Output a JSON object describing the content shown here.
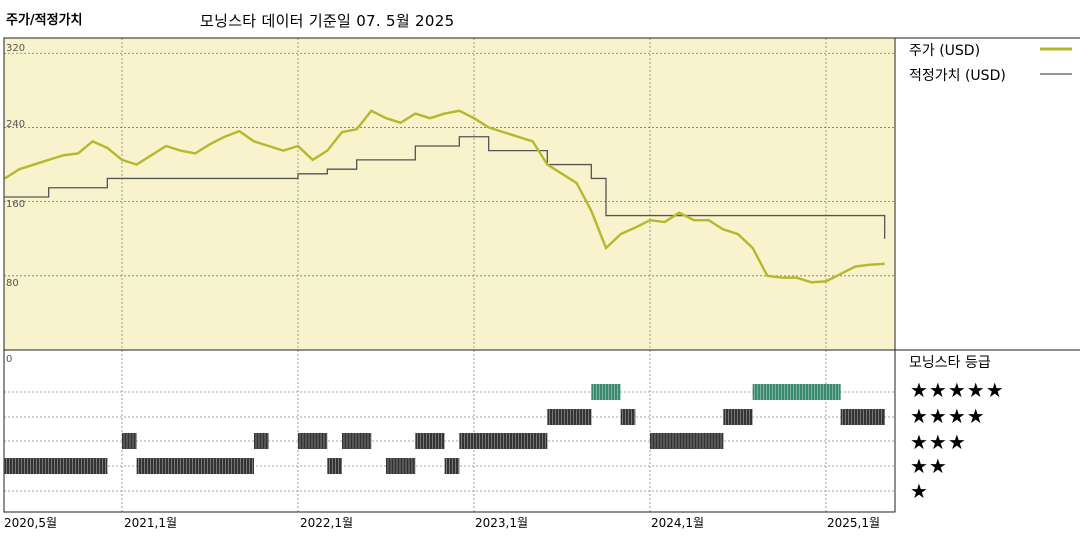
{
  "header": {
    "left_title": "주가/적정가치",
    "center_title": "모닝스타 데이터 기준일 07. 5월 2025"
  },
  "legend": {
    "price_label": "주가 (USD)",
    "fair_label": "적정가치 (USD)",
    "price_color": "#b5b82c",
    "fair_color": "#555555"
  },
  "rating_panel": {
    "title": "모닝스타 등급",
    "levels": [
      "★★★★★",
      "★★★★",
      "★★★",
      "★★",
      "★"
    ],
    "bar_color_dark": "#333333",
    "bar_color_green": "#3a8a6e"
  },
  "chart_data": {
    "type": "line",
    "ylim": [
      0,
      330
    ],
    "yticks": [
      0,
      80,
      160,
      240,
      320
    ],
    "ytick_labels": [
      "0",
      "80",
      "160",
      "240",
      "320"
    ],
    "xticks": [
      "2020-05",
      "2021-01",
      "2022-01",
      "2023-01",
      "2024-01",
      "2025-01"
    ],
    "xtick_labels": [
      "2020,5월",
      "2021,1월",
      "2022,1월",
      "2023,1월",
      "2024,1월",
      "2025,1월"
    ],
    "background_color": "#f8f3cc",
    "series": [
      {
        "name": "주가 (USD)",
        "points": [
          [
            "2020-05",
            185
          ],
          [
            "2020-06",
            195
          ],
          [
            "2020-07",
            200
          ],
          [
            "2020-08",
            205
          ],
          [
            "2020-09",
            210
          ],
          [
            "2020-10",
            212
          ],
          [
            "2020-11",
            225
          ],
          [
            "2020-12",
            218
          ],
          [
            "2021-01",
            205
          ],
          [
            "2021-02",
            200
          ],
          [
            "2021-03",
            210
          ],
          [
            "2021-04",
            220
          ],
          [
            "2021-05",
            215
          ],
          [
            "2021-06",
            212
          ],
          [
            "2021-07",
            222
          ],
          [
            "2021-08",
            230
          ],
          [
            "2021-09",
            236
          ],
          [
            "2021-10",
            225
          ],
          [
            "2021-11",
            220
          ],
          [
            "2021-12",
            215
          ],
          [
            "2022-01",
            220
          ],
          [
            "2022-02",
            205
          ],
          [
            "2022-03",
            215
          ],
          [
            "2022-04",
            235
          ],
          [
            "2022-05",
            238
          ],
          [
            "2022-06",
            258
          ],
          [
            "2022-07",
            250
          ],
          [
            "2022-08",
            245
          ],
          [
            "2022-09",
            255
          ],
          [
            "2022-10",
            250
          ],
          [
            "2022-11",
            255
          ],
          [
            "2022-12",
            258
          ],
          [
            "2023-01",
            250
          ],
          [
            "2023-02",
            240
          ],
          [
            "2023-03",
            235
          ],
          [
            "2023-04",
            230
          ],
          [
            "2023-05",
            225
          ],
          [
            "2023-06",
            200
          ],
          [
            "2023-07",
            190
          ],
          [
            "2023-08",
            180
          ],
          [
            "2023-09",
            150
          ],
          [
            "2023-10",
            110
          ],
          [
            "2023-11",
            125
          ],
          [
            "2023-12",
            132
          ],
          [
            "2024-01",
            140
          ],
          [
            "2024-02",
            138
          ],
          [
            "2024-03",
            148
          ],
          [
            "2024-04",
            140
          ],
          [
            "2024-05",
            140
          ],
          [
            "2024-06",
            130
          ],
          [
            "2024-07",
            125
          ],
          [
            "2024-08",
            110
          ],
          [
            "2024-09",
            80
          ],
          [
            "2024-10",
            78
          ],
          [
            "2024-11",
            78
          ],
          [
            "2024-12",
            73
          ],
          [
            "2025-01",
            74
          ],
          [
            "2025-02",
            82
          ],
          [
            "2025-03",
            90
          ],
          [
            "2025-04",
            92
          ],
          [
            "2025-05",
            93
          ]
        ]
      },
      {
        "name": "적정가치 (USD)",
        "points": [
          [
            "2020-05",
            165
          ],
          [
            "2020-07",
            165
          ],
          [
            "2020-08",
            175
          ],
          [
            "2020-12",
            185
          ],
          [
            "2022-01",
            190
          ],
          [
            "2022-03",
            195
          ],
          [
            "2022-05",
            205
          ],
          [
            "2022-09",
            220
          ],
          [
            "2022-12",
            230
          ],
          [
            "2023-01",
            230
          ],
          [
            "2023-02",
            215
          ],
          [
            "2023-06",
            200
          ],
          [
            "2023-09",
            185
          ],
          [
            "2023-10",
            145
          ],
          [
            "2024-09",
            145
          ],
          [
            "2024-11",
            145
          ],
          [
            "2025-05",
            120
          ]
        ]
      }
    ],
    "ratings": {
      "levels": [
        5,
        4,
        3,
        2,
        1
      ],
      "segments": [
        {
          "stars": 2,
          "start": "2020-05",
          "end": "2020-12"
        },
        {
          "stars": 3,
          "start": "2021-01",
          "end": "2021-02"
        },
        {
          "stars": 2,
          "start": "2021-02",
          "end": "2021-10"
        },
        {
          "stars": 3,
          "start": "2021-10",
          "end": "2021-11"
        },
        {
          "stars": 3,
          "start": "2022-01",
          "end": "2022-03"
        },
        {
          "stars": 2,
          "start": "2022-03",
          "end": "2022-04"
        },
        {
          "stars": 3,
          "start": "2022-04",
          "end": "2022-06"
        },
        {
          "stars": 2,
          "start": "2022-07",
          "end": "2022-09"
        },
        {
          "stars": 3,
          "start": "2022-09",
          "end": "2022-11"
        },
        {
          "stars": 2,
          "start": "2022-11",
          "end": "2022-12"
        },
        {
          "stars": 3,
          "start": "2022-12",
          "end": "2023-06"
        },
        {
          "stars": 4,
          "start": "2023-06",
          "end": "2023-09"
        },
        {
          "stars": 5,
          "start": "2023-09",
          "end": "2023-11"
        },
        {
          "stars": 4,
          "start": "2023-11",
          "end": "2023-12"
        },
        {
          "stars": 3,
          "start": "2024-01",
          "end": "2024-06"
        },
        {
          "stars": 4,
          "start": "2024-06",
          "end": "2024-08"
        },
        {
          "stars": 5,
          "start": "2024-08",
          "end": "2025-02"
        },
        {
          "stars": 4,
          "start": "2025-02",
          "end": "2025-05"
        }
      ]
    }
  }
}
